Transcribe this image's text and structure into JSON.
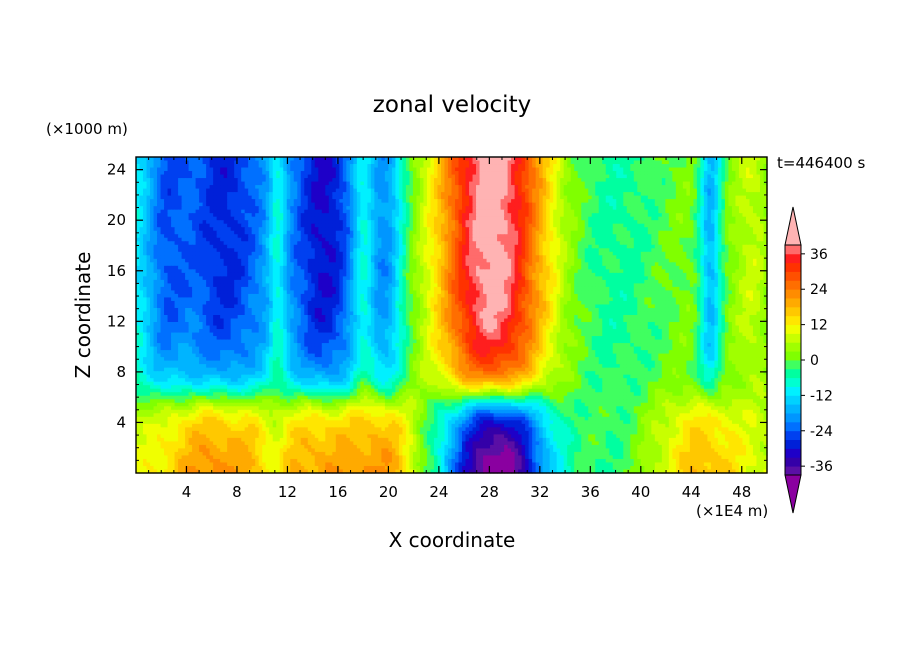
{
  "chart_data": {
    "type": "heatmap",
    "title": "zonal velocity",
    "xlabel": "X coordinate",
    "ylabel": "Z coordinate",
    "x_unit": "(×1E4 m)",
    "y_unit": "(×1000 m)",
    "time_label": "t=446400 s",
    "xlim": [
      0,
      50
    ],
    "ylim": [
      0,
      25
    ],
    "x_ticks": [
      "4",
      "8",
      "12",
      "16",
      "20",
      "24",
      "28",
      "32",
      "36",
      "40",
      "44",
      "48"
    ],
    "y_ticks": [
      "4",
      "8",
      "12",
      "16",
      "20",
      "24"
    ],
    "colorbar_labels": [
      "36",
      "24",
      "12",
      "0",
      "-12",
      "-24",
      "-36"
    ],
    "colorbar_range": [
      -42,
      42
    ],
    "levels": [
      -42,
      -39,
      -36,
      -33,
      -30,
      -27,
      -24,
      -21,
      -18,
      -15,
      -12,
      -9,
      -6,
      -3,
      0,
      3,
      6,
      9,
      12,
      15,
      18,
      21,
      24,
      27,
      30,
      33,
      36,
      39,
      42
    ],
    "colors": [
      "#8a00a0",
      "#5a0fa5",
      "#3400a8",
      "#1e00c8",
      "#0020d8",
      "#0040f0",
      "#0070ff",
      "#0096ff",
      "#00b4ff",
      "#00d2ff",
      "#00f0ff",
      "#00ffd0",
      "#00ffa0",
      "#40ff60",
      "#80ff00",
      "#a0ff00",
      "#c8ff00",
      "#f0ff00",
      "#ffe600",
      "#ffc800",
      "#ffaa00",
      "#ff8c00",
      "#ff6e00",
      "#ff5000",
      "#ff3200",
      "#ff1e1e",
      "#ff6b6b",
      "#ffb3b3"
    ],
    "grid": false
  }
}
